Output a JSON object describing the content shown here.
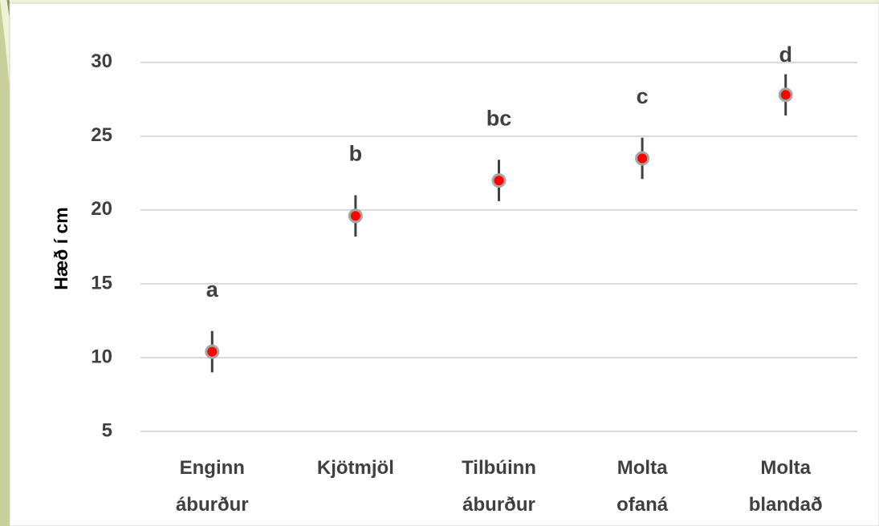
{
  "chart_data": {
    "type": "scatter",
    "y_label": "Hæð í cm",
    "categories": [
      "Enginn áburður",
      "Kjötmjöl",
      "Tilbúinn áburður",
      "Molta ofaná",
      "Molta blandað"
    ],
    "values": [
      10.4,
      19.6,
      22.0,
      23.5,
      27.8
    ],
    "errors": [
      1.4,
      1.4,
      1.4,
      1.4,
      1.4
    ],
    "annotations": [
      "a",
      "b",
      "bc",
      "c",
      "d"
    ],
    "color": "#ff0000",
    "edge_color": "#a6a6a6",
    "error_color": "#404040",
    "ylim": [
      5,
      32
    ],
    "yticks": [
      5,
      10,
      15,
      20,
      25,
      30
    ],
    "grid": true
  }
}
